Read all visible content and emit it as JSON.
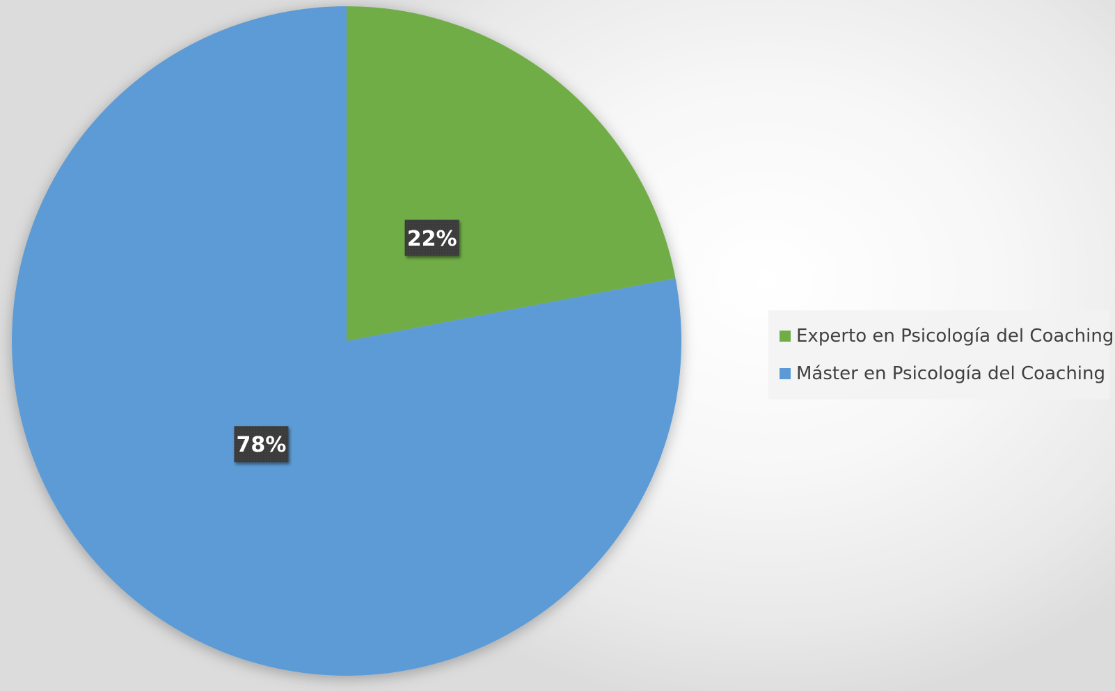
{
  "chart_data": {
    "type": "pie",
    "categories": [
      "Experto en Psicología del Coaching",
      "Máster en Psicología del Coaching"
    ],
    "values": [
      22,
      78
    ],
    "data_labels": [
      "22%",
      "78%"
    ],
    "colors": [
      "#70AD47",
      "#5B9BD5"
    ],
    "start_angle_deg": 0,
    "direction": "clockwise",
    "legend_position": "right",
    "title": ""
  }
}
